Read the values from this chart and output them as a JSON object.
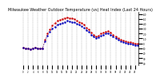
{
  "title": "Milwaukee Weather Outdoor Temperature (vs) Heat Index (Last 24 Hours)",
  "title_fontsize": 3.5,
  "background_color": "#ffffff",
  "grid_color": "#888888",
  "temp_color": "#cc0000",
  "heat_color": "#0000bb",
  "ylim": [
    -15,
    95
  ],
  "ytick_values": [
    -10,
    0,
    10,
    20,
    30,
    40,
    50,
    60,
    70,
    80,
    90
  ],
  "ytick_labels": [
    "40",
    "30",
    "20",
    "10",
    "0",
    "-10",
    "-20",
    "-30",
    "-40",
    "-50",
    "-60"
  ],
  "hours": [
    0,
    1,
    2,
    3,
    4,
    5,
    6,
    7,
    8,
    9,
    10,
    11,
    12,
    13,
    14,
    15,
    16,
    17,
    18,
    19,
    20,
    21,
    22,
    23,
    24,
    25,
    26,
    27,
    28,
    29,
    30,
    31,
    32,
    33,
    34,
    35,
    36,
    37,
    38,
    39,
    40,
    41,
    42,
    43,
    44,
    45,
    46,
    47
  ],
  "temp_values": [
    22,
    20,
    19,
    18,
    20,
    22,
    20,
    19,
    20,
    38,
    50,
    58,
    66,
    72,
    76,
    78,
    80,
    82,
    83,
    82,
    81,
    80,
    76,
    74,
    72,
    68,
    62,
    58,
    52,
    48,
    44,
    46,
    50,
    52,
    54,
    55,
    52,
    48,
    44,
    40,
    38,
    36,
    34,
    33,
    32,
    31,
    30,
    29
  ],
  "heat_values": [
    22,
    20,
    19,
    18,
    20,
    22,
    20,
    19,
    20,
    35,
    46,
    54,
    60,
    64,
    68,
    70,
    72,
    74,
    76,
    75,
    74,
    73,
    70,
    68,
    65,
    62,
    57,
    53,
    48,
    44,
    40,
    43,
    46,
    48,
    50,
    51,
    48,
    44,
    40,
    37,
    35,
    33,
    31,
    30,
    29,
    28,
    27,
    26
  ],
  "xtick_count": 48
}
